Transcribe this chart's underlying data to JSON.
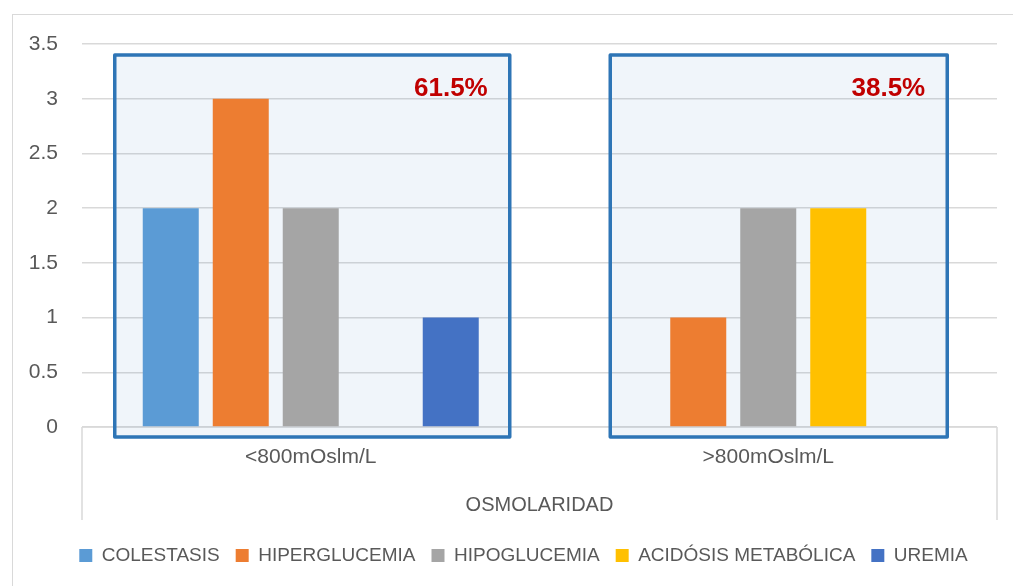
{
  "chart_data": {
    "type": "bar",
    "xlabel": "OSMOLARIDAD",
    "categories": [
      "<800mOslm/L",
      ">800mOslm/L"
    ],
    "series": [
      {
        "name": "COLESTASIS",
        "color": "#5b9bd5",
        "values": [
          2,
          null
        ]
      },
      {
        "name": "HIPERGLUCEMIA",
        "color": "#ed7d31",
        "values": [
          3,
          1
        ]
      },
      {
        "name": "HIPOGLUCEMIA",
        "color": "#a5a5a5",
        "values": [
          2,
          2
        ]
      },
      {
        "name": "ACIDÓSIS METABÓLICA",
        "color": "#ffc000",
        "values": [
          null,
          2
        ]
      },
      {
        "name": "UREMIA",
        "color": "#4472c4",
        "values": [
          1,
          null
        ]
      }
    ],
    "ylim": [
      0,
      3.5
    ],
    "yticks": [
      0,
      0.5,
      1,
      1.5,
      2,
      2.5,
      3,
      3.5
    ],
    "grid": "y",
    "legend": "bottom",
    "bands": [
      {
        "axis": "x",
        "from": "<800mOslm/L",
        "to": "<800mOslm/L",
        "label": "61.5%",
        "color": "#2e75b6"
      },
      {
        "axis": "x",
        "from": ">800mOslm/L",
        "to": ">800mOslm/L",
        "label": "38.5%",
        "color": "#2e75b6"
      }
    ]
  }
}
